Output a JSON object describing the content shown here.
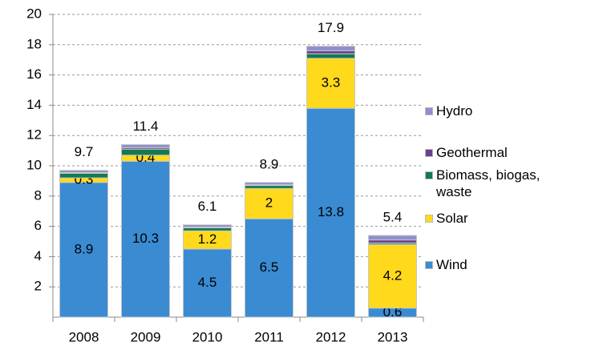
{
  "chart_data": {
    "type": "stacked_bar",
    "categories": [
      "2008",
      "2009",
      "2010",
      "2011",
      "2012",
      "2013"
    ],
    "series": [
      {
        "name": "Wind",
        "color": "#3a8bd2",
        "values": [
          8.9,
          10.3,
          4.5,
          6.5,
          13.8,
          0.6
        ],
        "show_labels": true
      },
      {
        "name": "Solar",
        "color": "#ffd91c",
        "values": [
          0.3,
          0.4,
          1.2,
          2.0,
          3.3,
          4.2
        ],
        "show_labels": true
      },
      {
        "name": "Biomass, biogas, waste",
        "color": "#127a4f",
        "values": [
          0.3,
          0.4,
          0.2,
          0.2,
          0.3,
          0.1
        ],
        "show_labels": false
      },
      {
        "name": "Geothermal",
        "color": "#6a3f8e",
        "values": [
          0.05,
          0.1,
          0.05,
          0.05,
          0.2,
          0.2
        ],
        "show_labels": false
      },
      {
        "name": "Hydro",
        "color": "#8e8ed0",
        "values": [
          0.15,
          0.2,
          0.15,
          0.15,
          0.3,
          0.3
        ],
        "show_labels": false
      }
    ],
    "totals": [
      9.7,
      11.4,
      6.1,
      8.9,
      17.9,
      5.4
    ],
    "ylim": [
      0,
      20
    ],
    "yticks": [
      2,
      4,
      6,
      8,
      10,
      12,
      14,
      16,
      18,
      20
    ],
    "grid": true
  }
}
